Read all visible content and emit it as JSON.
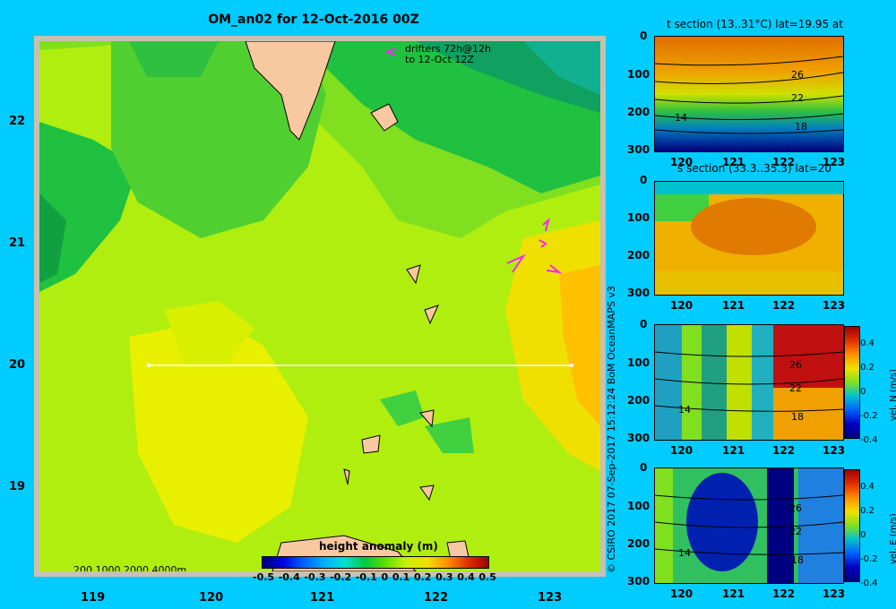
{
  "map": {
    "title": "OM_an02 for 12-Oct-2016 00Z",
    "drifters_line1": "drifters 72h@12h",
    "drifters_line2": "to 12-Oct 12Z",
    "x_ticks": [
      "119",
      "120",
      "121",
      "122",
      "123"
    ],
    "y_ticks": [
      "22",
      "21",
      "20",
      "19"
    ],
    "depth_legend": "200  1000  2000  4000m"
  },
  "colorbar": {
    "label": "height anomaly (m)",
    "ticks": [
      "-0.5",
      "-0.4",
      "-0.3",
      "-0.2",
      "-0.1",
      "0",
      "0.1",
      "0.2",
      "0.3",
      "0.4",
      "0.5"
    ],
    "colors": [
      "#000080",
      "#0000e0",
      "#0060ff",
      "#00b0ff",
      "#00e0d0",
      "#00c840",
      "#60e000",
      "#c8f000",
      "#f0e000",
      "#ff9000",
      "#e03000",
      "#a00000"
    ]
  },
  "copyright": "© CSIRO 2017   07-Sep-2017 15:12:24 BoM OceanMAPS v3",
  "panels": [
    {
      "title": "t section (13..31°C) lat=19.95 at",
      "x_ticks": [
        "120",
        "121",
        "122",
        "123"
      ],
      "y_ticks": [
        "0",
        "100",
        "200",
        "300"
      ],
      "contour_labels": [
        "26",
        "22",
        "18",
        "14"
      ],
      "colorbar_title": "",
      "colorbar_ticks": []
    },
    {
      "title": "s section (33.3..35.3) lat=20",
      "x_ticks": [
        "120",
        "121",
        "122",
        "123"
      ],
      "y_ticks": [
        "0",
        "100",
        "200",
        "300"
      ],
      "contour_labels": [],
      "colorbar_title": "",
      "colorbar_ticks": []
    },
    {
      "title": "",
      "x_ticks": [
        "120",
        "121",
        "122",
        "123"
      ],
      "y_ticks": [
        "0",
        "100",
        "200",
        "300"
      ],
      "contour_labels": [
        "26",
        "22",
        "18",
        "14"
      ],
      "colorbar_title": "vel. N (m/s)",
      "colorbar_ticks": [
        "0.4",
        "0.2",
        "0",
        "-0.2",
        "-0.4"
      ]
    },
    {
      "title": "",
      "x_ticks": [
        "120",
        "121",
        "122",
        "123"
      ],
      "y_ticks": [
        "0",
        "100",
        "200",
        "300"
      ],
      "contour_labels": [
        "26",
        "22",
        "18",
        "14"
      ],
      "colorbar_title": "vel. E (m/s)",
      "colorbar_ticks": [
        "0.4",
        "0.2",
        "0",
        "-0.2",
        "-0.4"
      ]
    }
  ]
}
